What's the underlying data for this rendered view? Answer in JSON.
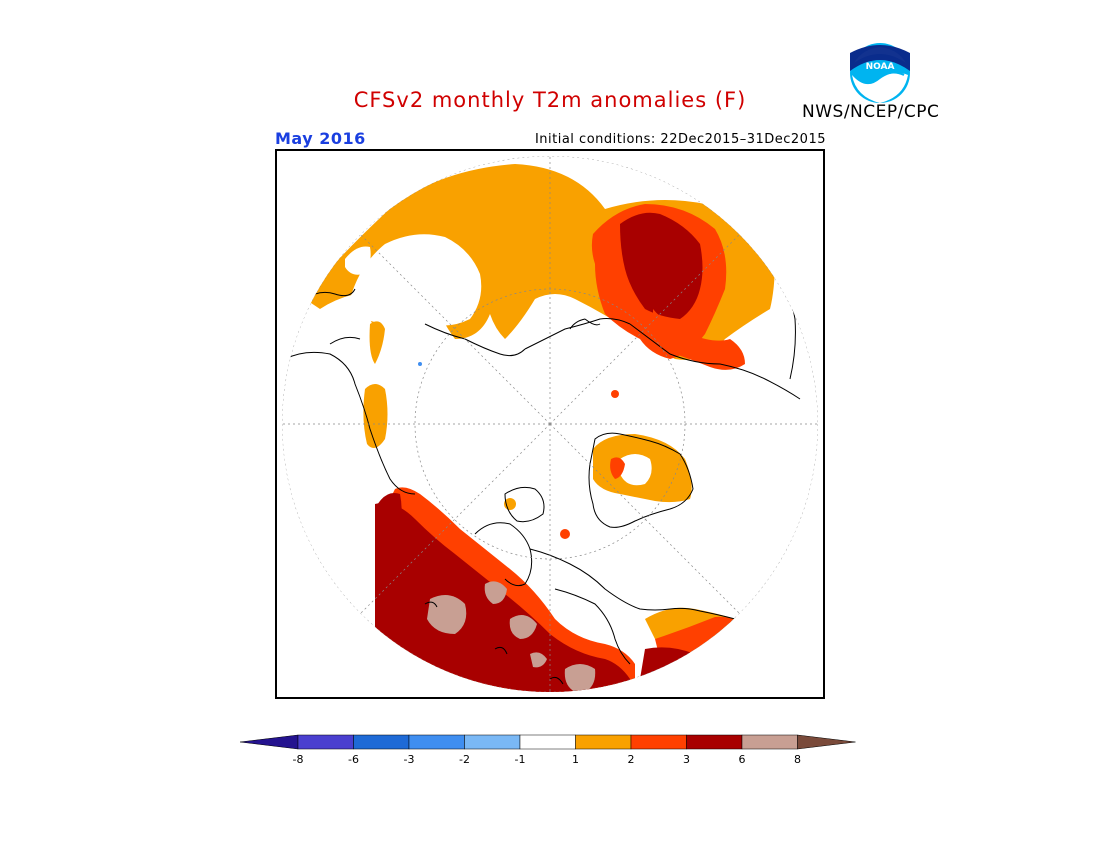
{
  "header": {
    "title": "CFSv2 monthly T2m anomalies (F)",
    "month": "May 2016",
    "initial_conditions": "Initial conditions: 22Dec2015–31Dec2015",
    "agency": "NWS/NCEP/CPC",
    "logo_text": "NOAA"
  },
  "colors": {
    "title": "#d00000",
    "month": "#1a3fe0",
    "land_outline": "#000000",
    "neg8": "#24138f",
    "neg6": "#4a3fcf",
    "neg3": "#1e6ad6",
    "neg2": "#3f8ef0",
    "neg1": "#7ab8f5",
    "neutral": "#ffffff",
    "pos1": "#f9a100",
    "pos2": "#ff4000",
    "pos3": "#a80000",
    "pos6": "#c89f93",
    "pos8": "#7a4a3a"
  },
  "legend": {
    "bins": [
      {
        "color": "#24138f"
      },
      {
        "color": "#4a3fcf"
      },
      {
        "color": "#1e6ad6"
      },
      {
        "color": "#3f8ef0"
      },
      {
        "color": "#7ab8f5"
      },
      {
        "color": "#ffffff"
      },
      {
        "color": "#f9a100"
      },
      {
        "color": "#ff4000"
      },
      {
        "color": "#a80000"
      },
      {
        "color": "#c89f93"
      },
      {
        "color": "#7a4a3a"
      }
    ],
    "tick_labels": [
      "-8",
      "-6",
      "-3",
      "-2",
      "-1",
      "1",
      "2",
      "3",
      "6",
      "8"
    ]
  }
}
